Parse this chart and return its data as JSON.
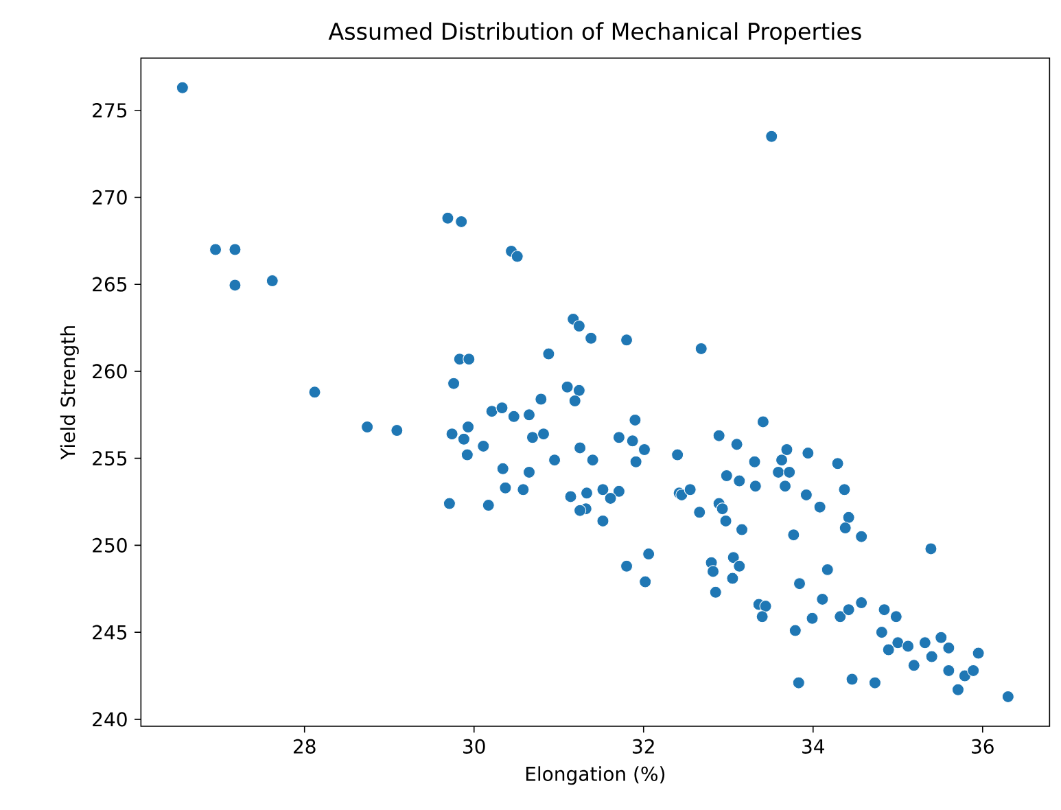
{
  "chart_data": {
    "type": "scatter",
    "title": "Assumed Distribution of Mechanical Properties",
    "xlabel": "Elongation (%)",
    "ylabel": "Yield Strength",
    "xlim": [
      26.07,
      36.79
    ],
    "ylim": [
      239.6,
      278.0
    ],
    "xticks": [
      28,
      30,
      32,
      34,
      36
    ],
    "yticks": [
      240,
      245,
      250,
      255,
      260,
      265,
      270,
      275
    ],
    "marker": "circle",
    "color": "#1f77b4",
    "x": [
      26.56,
      26.95,
      27.18,
      27.18,
      27.62,
      28.12,
      29.69,
      29.85,
      30.44,
      30.51,
      31.17,
      31.24,
      31.38,
      30.88,
      29.83,
      29.94,
      29.76,
      31.1,
      31.24,
      31.19,
      30.79,
      33.51,
      31.8,
      32.68,
      30.21,
      30.33,
      30.47,
      30.65,
      28.74,
      29.09,
      29.74,
      29.93,
      29.88,
      29.92,
      30.11,
      30.69,
      30.82,
      30.34,
      30.65,
      30.95,
      31.25,
      31.4,
      30.37,
      30.58,
      29.71,
      30.17,
      31.14,
      31.33,
      31.32,
      31.25,
      31.52,
      31.52,
      31.9,
      31.71,
      31.87,
      32.01,
      31.91,
      31.71,
      31.61,
      32.4,
      32.42,
      32.45,
      32.55,
      32.66,
      32.89,
      33.1,
      32.98,
      33.13,
      33.31,
      33.32,
      33.41,
      32.89,
      32.93,
      32.97,
      33.16,
      33.69,
      33.63,
      33.59,
      33.72,
      33.67,
      33.94,
      34.29,
      34.37,
      33.92,
      34.08,
      34.42,
      34.38,
      34.57,
      33.77,
      35.39,
      32.06,
      31.8,
      32.02,
      32.8,
      32.82,
      32.85,
      33.06,
      33.13,
      33.05,
      34.17,
      33.84,
      33.36,
      33.44,
      33.4,
      34.11,
      33.99,
      34.32,
      34.42,
      34.57,
      33.79,
      34.84,
      34.98,
      34.81,
      34.89,
      35.0,
      35.12,
      35.32,
      35.51,
      35.6,
      35.4,
      35.19,
      35.95,
      35.6,
      35.79,
      35.89,
      35.71,
      36.3,
      33.83,
      34.46,
      34.73
    ],
    "values": [
      276.3,
      267.0,
      267.0,
      264.95,
      265.2,
      258.8,
      268.8,
      268.6,
      266.9,
      266.6,
      263.0,
      262.6,
      261.9,
      261.0,
      260.7,
      260.7,
      259.3,
      259.1,
      258.9,
      258.3,
      258.4,
      273.5,
      261.8,
      261.3,
      257.7,
      257.9,
      257.4,
      257.5,
      256.8,
      256.6,
      256.4,
      256.8,
      256.1,
      255.2,
      255.7,
      256.2,
      256.4,
      254.4,
      254.2,
      254.9,
      255.6,
      254.9,
      253.3,
      253.2,
      252.4,
      252.3,
      252.8,
      253.0,
      252.1,
      252.0,
      251.4,
      253.2,
      257.2,
      256.2,
      256.0,
      255.5,
      254.8,
      253.1,
      252.7,
      255.2,
      253.0,
      252.9,
      253.2,
      251.9,
      256.3,
      255.8,
      254.0,
      253.7,
      254.8,
      253.4,
      257.1,
      252.4,
      252.1,
      251.4,
      250.9,
      255.5,
      254.9,
      254.2,
      254.2,
      253.4,
      255.3,
      254.7,
      253.2,
      252.9,
      252.2,
      251.6,
      251.0,
      250.5,
      250.6,
      249.8,
      249.5,
      248.8,
      247.9,
      249.0,
      248.5,
      247.3,
      249.3,
      248.8,
      248.1,
      248.6,
      247.8,
      246.6,
      246.5,
      245.9,
      246.9,
      245.8,
      245.9,
      246.3,
      246.7,
      245.1,
      246.3,
      245.9,
      245.0,
      244.0,
      244.4,
      244.2,
      244.4,
      244.7,
      244.1,
      243.6,
      243.1,
      243.8,
      242.8,
      242.5,
      242.8,
      241.7,
      241.3,
      242.1,
      242.3,
      242.1
    ]
  }
}
